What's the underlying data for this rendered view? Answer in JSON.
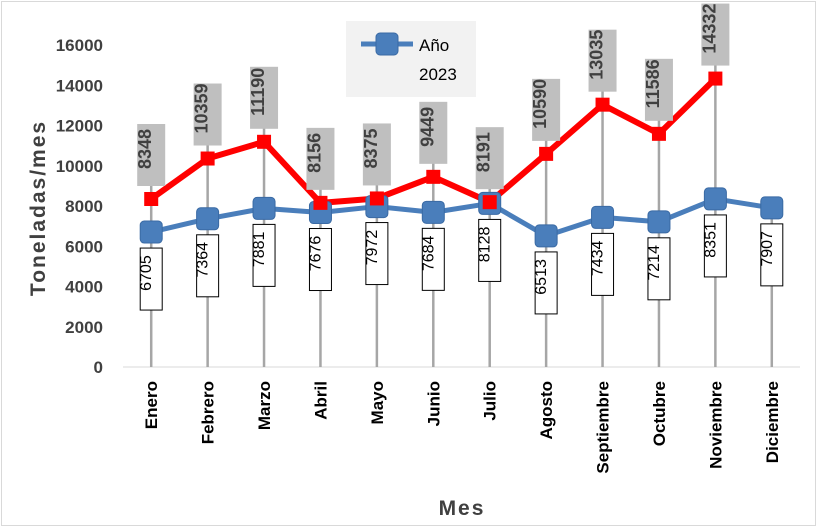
{
  "chart_data": {
    "type": "line",
    "title": "",
    "xlabel": "Mes",
    "ylabel": "Toneladas/mes",
    "ylim": [
      0,
      16000
    ],
    "yticks": [
      0,
      2000,
      4000,
      6000,
      8000,
      10000,
      12000,
      14000,
      16000
    ],
    "grid": false,
    "legend_position": "top-center",
    "categories": [
      "Enero",
      "Febrero",
      "Marzo",
      "Abril",
      "Mayo",
      "Junio",
      "Julio",
      "Agosto",
      "Septiembre",
      "Octubre",
      "Noviembre",
      "Diciembre"
    ],
    "series": [
      {
        "name": "Año 2023",
        "color": "#4a7ebb",
        "values": [
          6705,
          7364,
          7881,
          7676,
          7972,
          7684,
          8128,
          6513,
          7434,
          7214,
          8351,
          7907
        ]
      },
      {
        "color": "#ff0000",
        "values": [
          8348,
          10359,
          11190,
          8156,
          8375,
          9449,
          8191,
          10590,
          13035,
          11586,
          14332,
          null
        ]
      }
    ]
  }
}
